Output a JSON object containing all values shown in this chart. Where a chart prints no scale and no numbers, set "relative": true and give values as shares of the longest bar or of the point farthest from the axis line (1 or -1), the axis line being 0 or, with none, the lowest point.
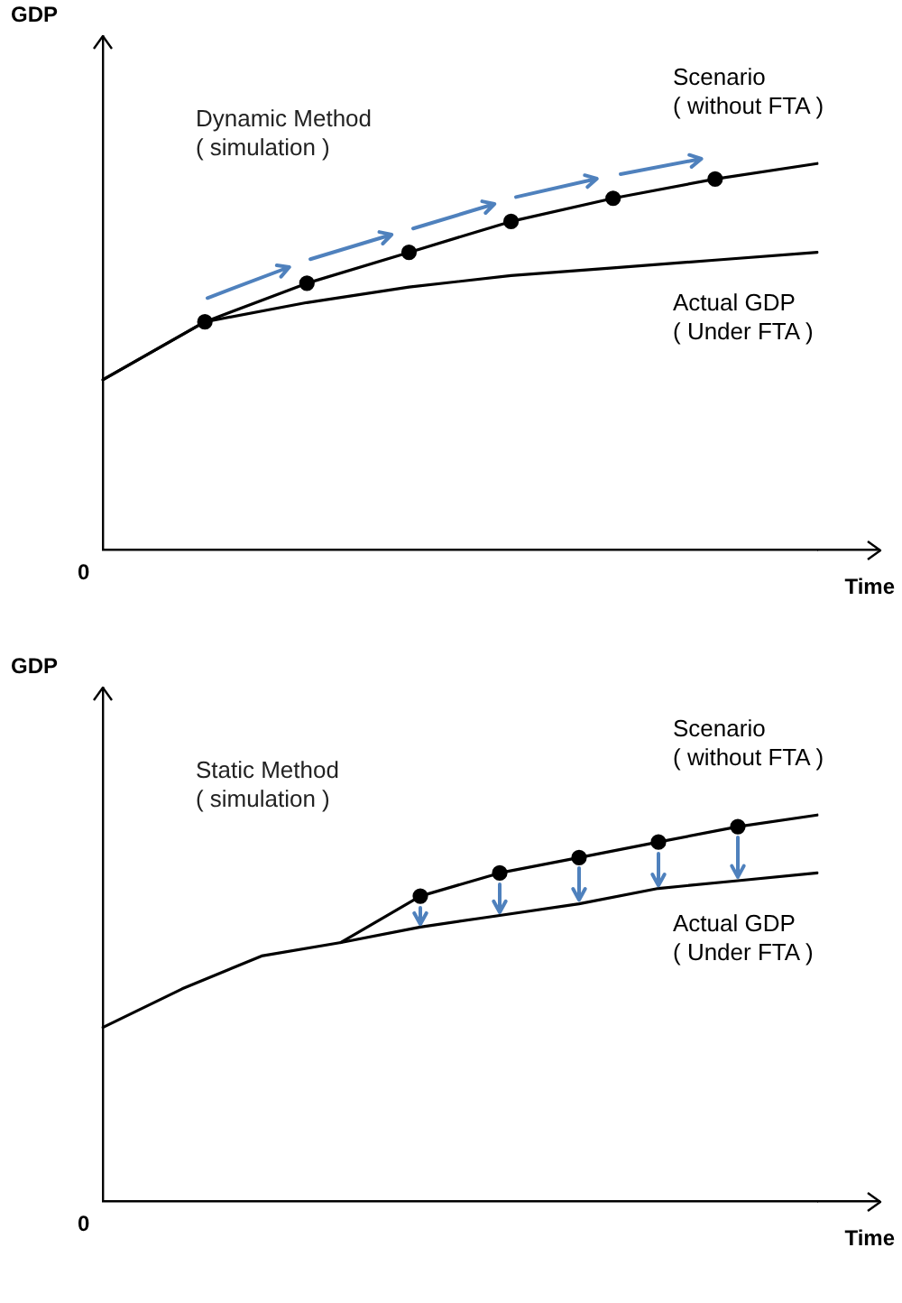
{
  "chart_data": [
    {
      "type": "line",
      "relative": true,
      "ylabel": "GDP",
      "xlabel": "Time",
      "grid": false,
      "annotations": [
        "Dynamic Method\n( simulation )",
        "0"
      ],
      "categories": [
        null,
        null,
        null,
        null,
        null,
        null,
        null,
        null
      ],
      "series": [
        {
          "name": "Scenario\n( without FTA )",
          "color": "#000000",
          "marker": "circle",
          "values": [
            0.44,
            0.59,
            0.69,
            0.77,
            0.85,
            0.91,
            0.96,
            1
          ]
        },
        {
          "name": "Actual GDP\n( Under FTA )",
          "color": "#000000",
          "values": [
            0.44,
            0.59,
            0.64,
            0.68,
            0.71,
            0.73,
            0.75,
            0.77
          ]
        }
      ]
    },
    {
      "type": "line",
      "relative": true,
      "ylabel": "GDP",
      "xlabel": "Time",
      "grid": false,
      "annotations": [
        "Static Method\n( simulation )",
        "0"
      ],
      "categories": [
        null,
        null,
        null,
        null,
        null,
        null,
        null,
        null,
        null,
        null
      ],
      "series": [
        {
          "name": "Scenario\n( without FTA )",
          "color": "#000000",
          "marker": "circle",
          "values": [
            null,
            null,
            null,
            0.67,
            0.79,
            0.85,
            0.89,
            0.93,
            0.97,
            1
          ]
        },
        {
          "name": "Actual GDP\n( Under FTA )",
          "color": "#000000",
          "values": [
            0.45,
            0.55,
            0.635,
            0.67,
            0.71,
            0.74,
            0.77,
            0.81,
            0.83,
            0.85
          ]
        }
      ]
    }
  ]
}
